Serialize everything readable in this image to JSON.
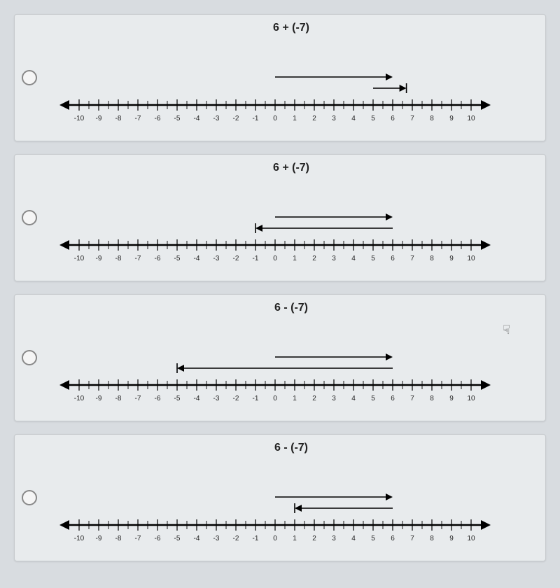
{
  "axis": {
    "min": -10,
    "max": 10,
    "tick_step": 1,
    "line_color": "#000000",
    "line_width": 2.5,
    "tick_height": 6,
    "major_tick_height": 8,
    "label_color": "#222222",
    "label_fontsize": 10,
    "arrowhead_size": 10,
    "arrowhead_color": "#000000"
  },
  "arrow_style": {
    "color": "#000000",
    "width": 1.6,
    "head_length": 10,
    "head_width": 5,
    "spacing": 16
  },
  "options": [
    {
      "expression": "6 + (-7)",
      "arrows": [
        {
          "from": 0,
          "to": 6,
          "end_cap": "arrow",
          "start_cap": "none",
          "row": 1
        },
        {
          "from": 5,
          "to": 6.7,
          "end_cap": "arrow",
          "start_cap": "none",
          "row": 0,
          "end_bar": true
        }
      ]
    },
    {
      "expression": "6 + (-7)",
      "arrows": [
        {
          "from": 0,
          "to": 6,
          "end_cap": "arrow",
          "start_cap": "none",
          "row": 1
        },
        {
          "from": 6,
          "to": -1,
          "end_cap": "arrow",
          "start_cap": "none",
          "row": 0,
          "start_bar": false,
          "end_bar": true
        }
      ]
    },
    {
      "expression": "6 - (-7)",
      "cursor": true,
      "arrows": [
        {
          "from": 0,
          "to": 6,
          "end_cap": "arrow",
          "start_cap": "none",
          "row": 1
        },
        {
          "from": 6,
          "to": -5,
          "end_cap": "arrow",
          "start_cap": "none",
          "row": 0,
          "end_bar": true
        }
      ]
    },
    {
      "expression": "6 - (-7)",
      "arrows": [
        {
          "from": 0,
          "to": 6,
          "end_cap": "arrow",
          "start_cap": "none",
          "row": 1
        },
        {
          "from": 6,
          "to": 1,
          "end_cap": "arrow",
          "start_cap": "none",
          "row": 0,
          "end_bar": true
        }
      ]
    }
  ]
}
